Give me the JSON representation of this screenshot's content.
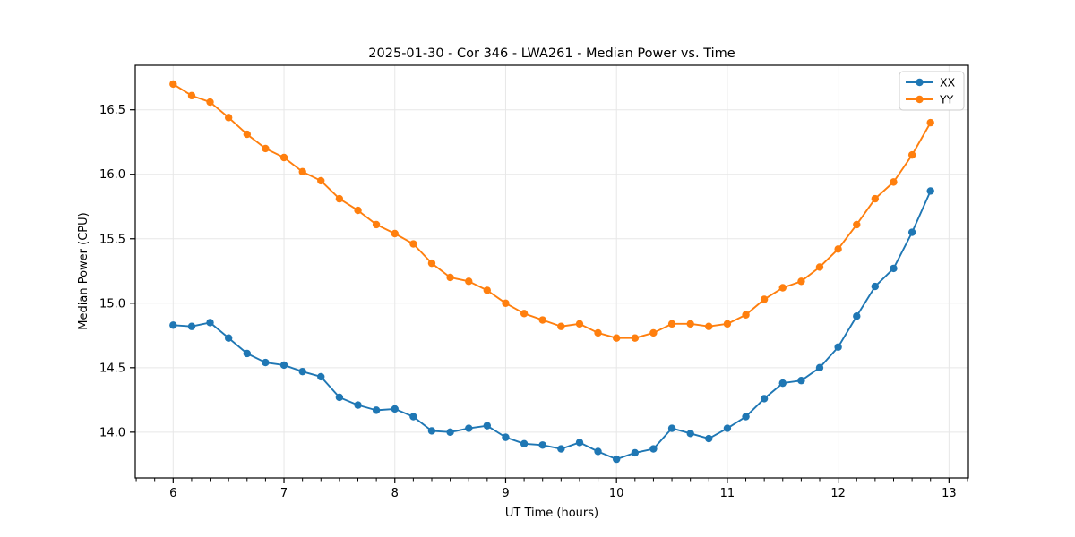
{
  "figure": {
    "background": "#ffffff",
    "spine_color": "#000000",
    "grid_color": "#e7e7e7",
    "tick_color": "#000000"
  },
  "chart_data": {
    "type": "line",
    "title": "2025-01-30 - Cor 346 - LWA261 - Median Power vs. Time",
    "xlabel": "UT Time (hours)",
    "ylabel": "Median Power (CPU)",
    "xlim": [
      5.658,
      13.175
    ],
    "ylim": [
      13.645,
      16.845
    ],
    "xticks": [
      6,
      7,
      8,
      9,
      10,
      11,
      12,
      13
    ],
    "yticks": [
      14.0,
      14.5,
      15.0,
      15.5,
      16.0,
      16.5
    ],
    "minor_xtick_step_hours": 0.1667,
    "grid": true,
    "legend_position": "top-right",
    "marker": "circle",
    "x": [
      6.0,
      6.167,
      6.333,
      6.5,
      6.667,
      6.833,
      7.0,
      7.167,
      7.333,
      7.5,
      7.667,
      7.833,
      8.0,
      8.167,
      8.333,
      8.5,
      8.667,
      8.833,
      9.0,
      9.167,
      9.333,
      9.5,
      9.667,
      9.833,
      10.0,
      10.167,
      10.333,
      10.5,
      10.667,
      10.833,
      11.0,
      11.167,
      11.333,
      11.5,
      11.667,
      11.833,
      12.0,
      12.167,
      12.333,
      12.5,
      12.667,
      12.833
    ],
    "series": [
      {
        "name": "XX",
        "color": "#1f77b4",
        "values": [
          14.83,
          14.82,
          14.85,
          14.73,
          14.61,
          14.54,
          14.52,
          14.47,
          14.43,
          14.27,
          14.21,
          14.17,
          14.18,
          14.12,
          14.01,
          14.0,
          14.03,
          14.05,
          13.96,
          13.91,
          13.9,
          13.87,
          13.92,
          13.85,
          13.79,
          13.84,
          13.87,
          14.03,
          13.99,
          13.95,
          14.03,
          14.12,
          14.26,
          14.38,
          14.4,
          14.5,
          14.66,
          14.9,
          15.13,
          15.27,
          15.55,
          15.87
        ]
      },
      {
        "name": "YY",
        "color": "#ff7f0e",
        "values": [
          16.7,
          16.61,
          16.56,
          16.44,
          16.31,
          16.2,
          16.13,
          16.02,
          15.95,
          15.81,
          15.72,
          15.61,
          15.54,
          15.46,
          15.31,
          15.2,
          15.17,
          15.1,
          15.0,
          14.92,
          14.87,
          14.82,
          14.84,
          14.77,
          14.73,
          14.73,
          14.77,
          14.84,
          14.84,
          14.82,
          14.84,
          14.91,
          15.03,
          15.12,
          15.17,
          15.28,
          15.42,
          15.61,
          15.81,
          15.94,
          16.15,
          16.4
        ]
      }
    ]
  }
}
